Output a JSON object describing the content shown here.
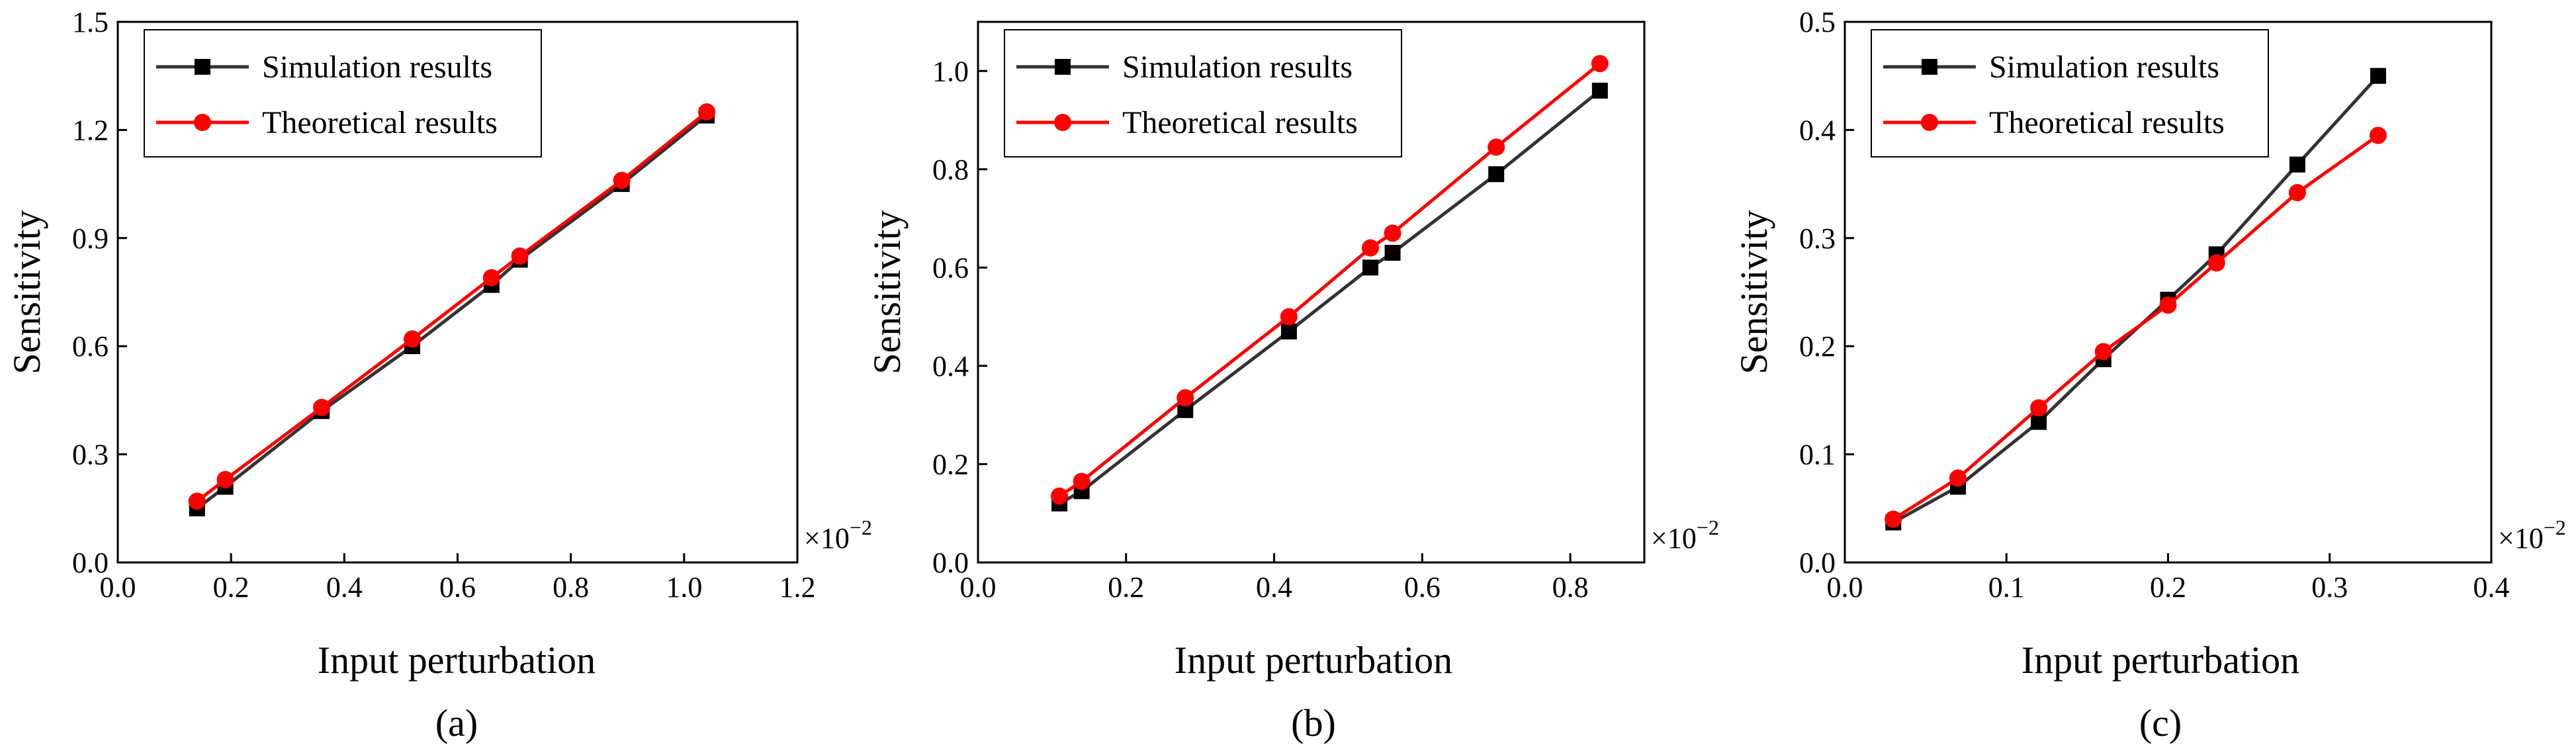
{
  "figure": {
    "panels": [
      "(a)",
      "(b)",
      "(c)"
    ]
  },
  "chart_data": [
    {
      "type": "line",
      "panel_label": "(a)",
      "xlabel": "Input perturbation",
      "ylabel": "Sensitivity",
      "x_multiplier": "×10",
      "x_multiplier_exp": "−2",
      "xlim": [
        0.0,
        1.2
      ],
      "ylim": [
        0.0,
        1.5
      ],
      "xticks": [
        "0.0",
        "0.2",
        "0.4",
        "0.6",
        "0.8",
        "1.0",
        "1.2"
      ],
      "yticks": [
        "0.0",
        "0.3",
        "0.6",
        "0.9",
        "1.2",
        "1.5"
      ],
      "legend_position": "top-left",
      "series": [
        {
          "name": "Simulation results",
          "color": "#333333",
          "marker": "square",
          "x": [
            0.14,
            0.19,
            0.36,
            0.52,
            0.66,
            0.71,
            0.89,
            1.04
          ],
          "y": [
            0.15,
            0.21,
            0.42,
            0.6,
            0.77,
            0.84,
            1.05,
            1.24
          ]
        },
        {
          "name": "Theoretical results",
          "color": "#ff0000",
          "marker": "circle",
          "x": [
            0.14,
            0.19,
            0.36,
            0.52,
            0.66,
            0.71,
            0.89,
            1.04
          ],
          "y": [
            0.17,
            0.23,
            0.43,
            0.62,
            0.79,
            0.85,
            1.06,
            1.25
          ]
        }
      ]
    },
    {
      "type": "line",
      "panel_label": "(b)",
      "xlabel": "Input perturbation",
      "ylabel": "Sensitivity",
      "x_multiplier": "×10",
      "x_multiplier_exp": "−2",
      "xlim": [
        0.0,
        0.9
      ],
      "ylim": [
        0.0,
        1.1
      ],
      "xticks": [
        "0.0",
        "0.2",
        "0.4",
        "0.6",
        "0.8"
      ],
      "yticks": [
        "0.0",
        "0.2",
        "0.4",
        "0.6",
        "0.8",
        "1.0"
      ],
      "legend_position": "top-left",
      "series": [
        {
          "name": "Simulation results",
          "color": "#333333",
          "marker": "square",
          "x": [
            0.11,
            0.14,
            0.28,
            0.42,
            0.53,
            0.56,
            0.7,
            0.84
          ],
          "y": [
            0.12,
            0.145,
            0.31,
            0.47,
            0.6,
            0.63,
            0.79,
            0.96
          ]
        },
        {
          "name": "Theoretical results",
          "color": "#ff0000",
          "marker": "circle",
          "x": [
            0.11,
            0.14,
            0.28,
            0.42,
            0.53,
            0.56,
            0.7,
            0.84
          ],
          "y": [
            0.135,
            0.165,
            0.335,
            0.5,
            0.64,
            0.67,
            0.845,
            1.015
          ]
        }
      ]
    },
    {
      "type": "line",
      "panel_label": "(c)",
      "xlabel": "Input perturbation",
      "ylabel": "Sensitivity",
      "x_multiplier": "×10",
      "x_multiplier_exp": "−2",
      "xlim": [
        0.0,
        0.4
      ],
      "ylim": [
        0.0,
        0.5
      ],
      "xticks": [
        "0.0",
        "0.1",
        "0.2",
        "0.3",
        "0.4"
      ],
      "yticks": [
        "0.0",
        "0.1",
        "0.2",
        "0.3",
        "0.4",
        "0.5"
      ],
      "legend_position": "top-left",
      "series": [
        {
          "name": "Simulation results",
          "color": "#333333",
          "marker": "square",
          "x": [
            0.03,
            0.07,
            0.12,
            0.16,
            0.2,
            0.23,
            0.28,
            0.33
          ],
          "y": [
            0.037,
            0.07,
            0.13,
            0.188,
            0.243,
            0.285,
            0.368,
            0.45
          ]
        },
        {
          "name": "Theoretical results",
          "color": "#ff0000",
          "marker": "circle",
          "x": [
            0.03,
            0.07,
            0.12,
            0.16,
            0.2,
            0.23,
            0.28,
            0.33
          ],
          "y": [
            0.04,
            0.078,
            0.143,
            0.195,
            0.238,
            0.277,
            0.342,
            0.395
          ]
        }
      ]
    }
  ]
}
